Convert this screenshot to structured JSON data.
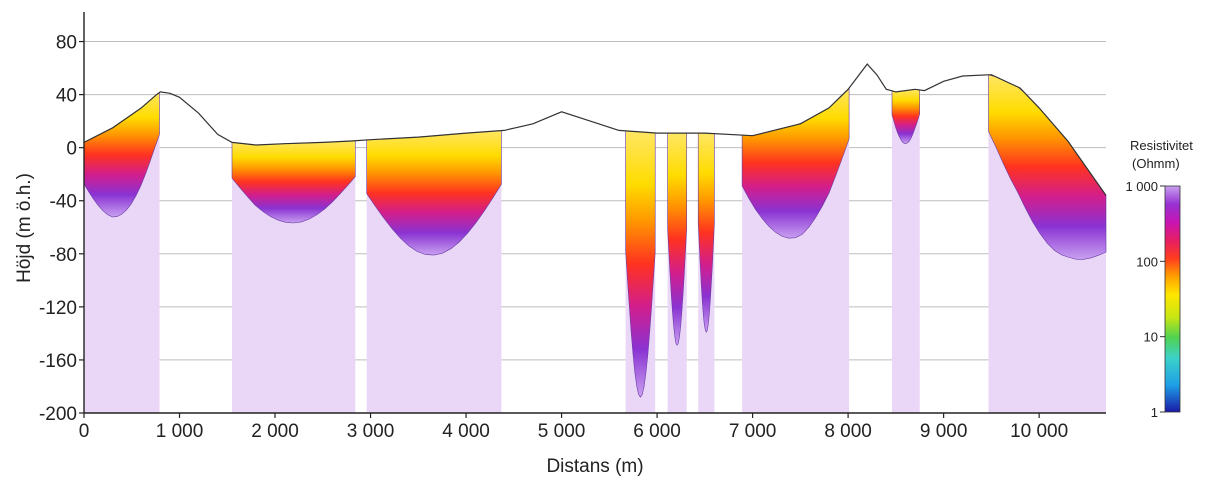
{
  "chart_data": {
    "type": "heatmap",
    "title": "",
    "xlabel": "Distans (m)",
    "ylabel": "Höjd (m ö.h.)",
    "xlim": [
      0,
      10700
    ],
    "ylim": [
      -200,
      100
    ],
    "x_ticks": [
      0,
      1000,
      2000,
      3000,
      4000,
      5000,
      6000,
      7000,
      8000,
      9000,
      10000
    ],
    "x_tick_labels": [
      "0",
      "1 000",
      "2 000",
      "3 000",
      "4 000",
      "5 000",
      "6 000",
      "7 000",
      "8 000",
      "9 000",
      "10 000"
    ],
    "y_ticks": [
      80,
      40,
      0,
      -40,
      -80,
      -120,
      -160,
      -200
    ],
    "y_tick_labels": [
      "80",
      "40",
      "0",
      "-40",
      "-80",
      "-120",
      "-160",
      "-200"
    ],
    "grid": true,
    "colorbar": {
      "title_lines": [
        "Resistivitet",
        "(Ohmm)"
      ],
      "scale": "log",
      "range": [
        1,
        1000
      ],
      "ticks": [
        1000,
        100,
        10,
        1
      ],
      "tick_labels": [
        "1 000",
        "100",
        "10",
        "1"
      ],
      "colors": [
        "#1a1aa8",
        "#1ea0e6",
        "#3cd2c8",
        "#50d250",
        "#c8e614",
        "#ffe600",
        "#ffa000",
        "#ff3c1e",
        "#e61e64",
        "#c814b4",
        "#9632d2",
        "#a060e6",
        "#c8a0f0"
      ]
    },
    "topography": {
      "x": [
        0,
        300,
        600,
        760,
        800,
        900,
        1000,
        1200,
        1400,
        1550,
        1800,
        2100,
        2500,
        2800,
        3000,
        3500,
        4000,
        4400,
        4700,
        5000,
        5300,
        5600,
        6000,
        6500,
        7000,
        7500,
        7800,
        8000,
        8200,
        8300,
        8400,
        8500,
        8600,
        8700,
        8800,
        9000,
        9200,
        9500,
        9800,
        10000,
        10300,
        10700
      ],
      "y": [
        4,
        15,
        30,
        40,
        42,
        41,
        38,
        26,
        10,
        4,
        2,
        3,
        4,
        5,
        6,
        8,
        11,
        13,
        18,
        27,
        20,
        13,
        11,
        11,
        9,
        18,
        30,
        44,
        63,
        55,
        44,
        42,
        43,
        44,
        43,
        50,
        54,
        55,
        45,
        30,
        5,
        -36
      ]
    },
    "sections": [
      {
        "x_start": 0,
        "x_end": 790,
        "depth_of_investigation_m": 70,
        "resistivity_ohmm": 150
      },
      {
        "x_start": 1550,
        "x_end": 2840,
        "depth_of_investigation_m": 60,
        "resistivity_ohmm": 120
      },
      {
        "x_start": 2960,
        "x_end": 4370,
        "depth_of_investigation_m": 90,
        "resistivity_ohmm": 130
      },
      {
        "x_start": 5670,
        "x_end": 5980,
        "depth_of_investigation_m": 200,
        "resistivity_ohmm": 150
      },
      {
        "x_start": 6110,
        "x_end": 6310,
        "depth_of_investigation_m": 160,
        "resistivity_ohmm": 140
      },
      {
        "x_start": 6430,
        "x_end": 6600,
        "depth_of_investigation_m": 150,
        "resistivity_ohmm": 150
      },
      {
        "x_start": 6890,
        "x_end": 8010,
        "depth_of_investigation_m": 85,
        "resistivity_ohmm": 150
      },
      {
        "x_start": 8460,
        "x_end": 8750,
        "depth_of_investigation_m": 40,
        "resistivity_ohmm": 120
      },
      {
        "x_start": 9470,
        "x_end": 10700,
        "depth_of_investigation_m": 95,
        "resistivity_ohmm": 80
      }
    ]
  }
}
